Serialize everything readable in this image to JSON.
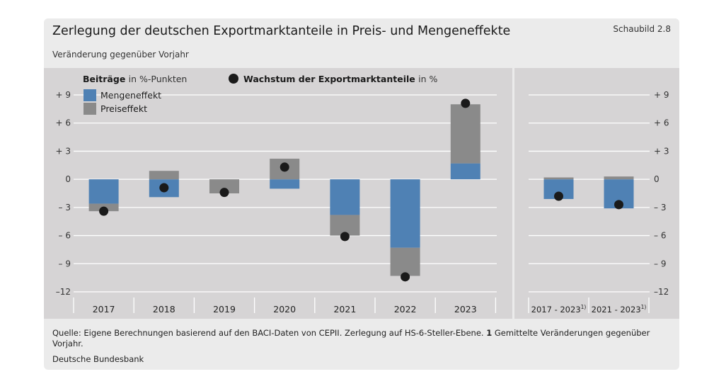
{
  "header": {
    "title": "Zerlegung der deutschen Exportmarktanteile in Preis- und Mengeneffekte",
    "figure_label": "Schaubild 2.8",
    "subtitle": "Veränderung gegenüber Vorjahr"
  },
  "legend": {
    "bars_heading_bold": "Beiträge",
    "bars_heading_rest": "in %-Punkten",
    "dots_heading_bold": "Wachstum der Exportmarktanteile",
    "dots_heading_rest": "in %",
    "placement": "top"
  },
  "footer": {
    "source_text": "Quelle: Eigene Berechnungen basierend auf den BACI-Daten von CEPII. Zerlegung auf HS-6-Steller-Ebene.",
    "footnote_mark": "1",
    "footnote_text": "Gemittelte Veränderungen gegenüber Vorjahr.",
    "publisher": "Deutsche Bundesbank"
  },
  "colors": {
    "mengeneffekt": "#4f81b4",
    "preiseffekt": "#8a8a8a",
    "dot": "#1a1a1a",
    "panel_bg": "#d6d4d5",
    "card_bg": "#ebebeb",
    "gridline": "#ffffff"
  },
  "chart_data": [
    {
      "type": "bar",
      "stacked": true,
      "ylim": [
        -12,
        9
      ],
      "y_ticks": [
        9,
        6,
        3,
        0,
        -3,
        -6,
        -9,
        -12
      ],
      "y_tick_labels": [
        "+ 9",
        "+ 6",
        "+ 3",
        "0",
        "– 3",
        "– 6",
        "– 9",
        "–12"
      ],
      "grid": true,
      "categories": [
        "2017",
        "2018",
        "2019",
        "2020",
        "2021",
        "2022",
        "2023"
      ],
      "series": [
        {
          "name": "Mengeneffekt",
          "kind": "bar",
          "values": [
            -2.6,
            -1.9,
            0.0,
            -1.0,
            -3.8,
            -7.3,
            1.7
          ]
        },
        {
          "name": "Preiseffekt",
          "kind": "bar",
          "values": [
            -0.8,
            0.9,
            -1.5,
            2.2,
            -2.2,
            -3.0,
            6.3
          ]
        },
        {
          "name": "Wachstum der Exportmarktanteile",
          "kind": "dot",
          "values": [
            -3.4,
            -0.9,
            -1.4,
            1.3,
            -6.1,
            -10.4,
            8.1
          ]
        }
      ]
    },
    {
      "type": "bar",
      "stacked": true,
      "ylim": [
        -12,
        9
      ],
      "y_ticks": [
        9,
        6,
        3,
        0,
        -3,
        -6,
        -9,
        -12
      ],
      "y_tick_labels": [
        "+ 9",
        "+ 6",
        "+ 3",
        "0",
        "– 3",
        "– 6",
        "– 9",
        "–12"
      ],
      "grid": true,
      "categories": [
        "2017 - 2023",
        "2021 - 2023"
      ],
      "category_footnote": "1)",
      "series": [
        {
          "name": "Mengeneffekt",
          "kind": "bar",
          "values": [
            -2.1,
            -3.1
          ]
        },
        {
          "name": "Preiseffekt",
          "kind": "bar",
          "values": [
            0.2,
            0.3
          ]
        },
        {
          "name": "Wachstum der Exportmarktanteile",
          "kind": "dot",
          "values": [
            -1.8,
            -2.7
          ]
        }
      ]
    }
  ]
}
